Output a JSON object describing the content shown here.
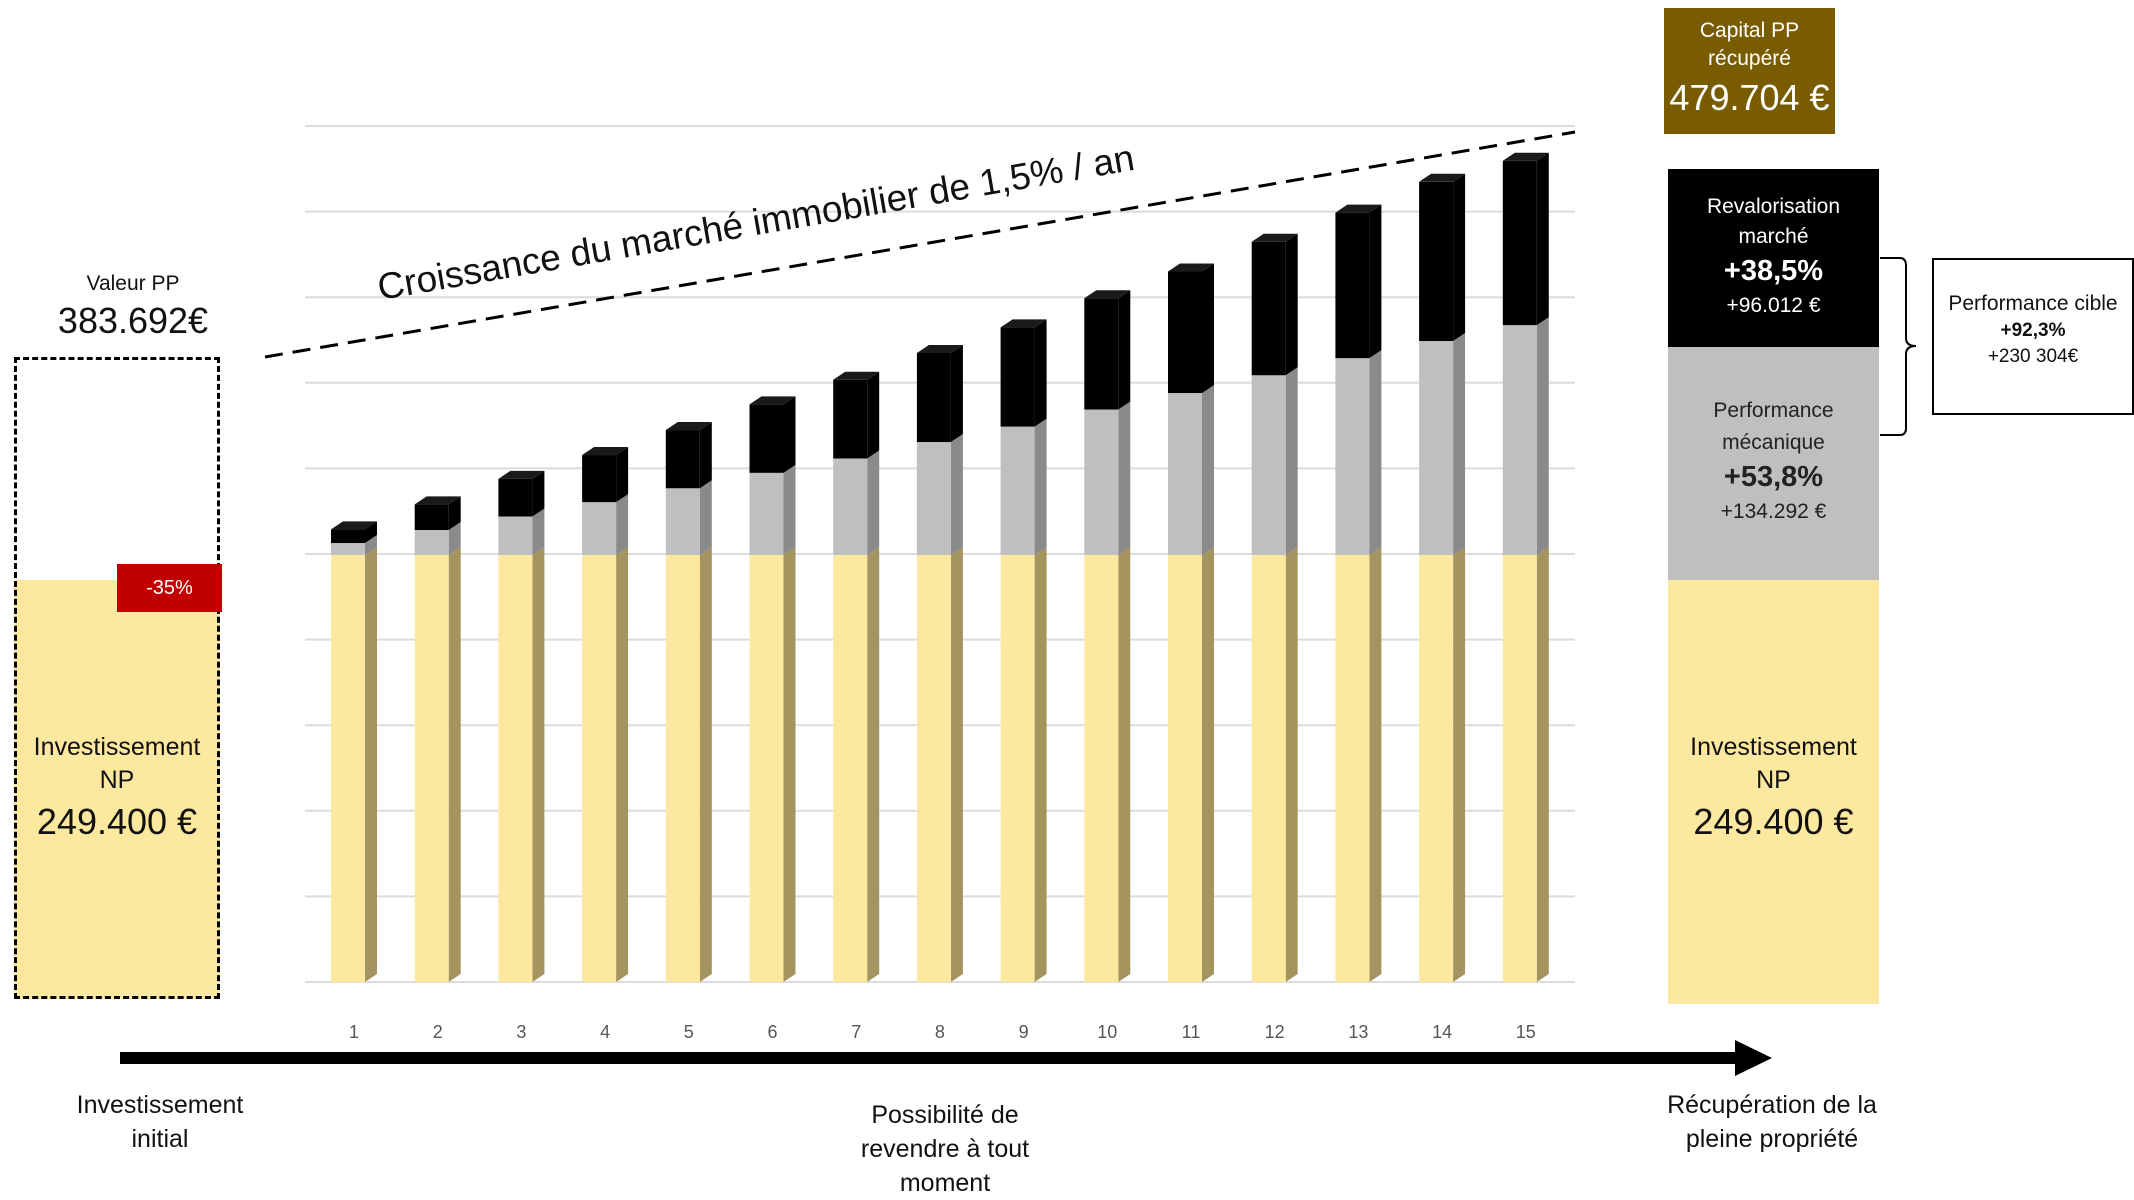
{
  "chart_data": {
    "type": "bar",
    "stacked": true,
    "categories": [
      "1",
      "2",
      "3",
      "4",
      "5",
      "6",
      "7",
      "8",
      "9",
      "10",
      "11",
      "12",
      "13",
      "14",
      "15"
    ],
    "series": [
      {
        "color": "#fde8a0",
        "values": [
          249400,
          249400,
          249400,
          249400,
          249400,
          249400,
          249400,
          249400,
          249400,
          249400,
          249400,
          249400,
          249400,
          249400,
          249400
        ]
      },
      {
        "color": "#bfbfbf",
        "values": [
          7000,
          14600,
          22500,
          30900,
          39000,
          48000,
          56400,
          66000,
          75000,
          85000,
          94600,
          105000,
          115000,
          125000,
          134292
        ]
      },
      {
        "color": "#000000",
        "values": [
          8000,
          15000,
          22000,
          27500,
          34000,
          40000,
          46000,
          52000,
          58000,
          65000,
          71000,
          78000,
          85000,
          93000,
          96012
        ]
      }
    ],
    "ylim": [
      0,
      500000
    ],
    "grid": true,
    "annotations": {
      "trend_label": "Croissance du marché immobilier de 1,5% / an"
    }
  },
  "left": {
    "pp_label": "Valeur PP",
    "pp_value": "383.692€",
    "discount": "-35%",
    "np_label_1": "Investissement",
    "np_label_2": "NP",
    "np_value": "249.400 €"
  },
  "right": {
    "capital_label_1": "Capital PP",
    "capital_label_2": "récupéré",
    "capital_value": "479.704 €",
    "reval_label_1": "Revalorisation",
    "reval_label_2": "marché",
    "reval_pct": "+38,5%",
    "reval_amount": "+96.012 €",
    "meca_label_1": "Performance",
    "meca_label_2": "mécanique",
    "meca_pct": "+53,8%",
    "meca_amount": "+134.292 €",
    "np_label_1": "Investissement",
    "np_label_2": "NP",
    "np_value": "249.400 €",
    "target_label": "Performance cible",
    "target_pct": "+92,3%",
    "target_amount": "+230 304€"
  },
  "timeline": {
    "start_1": "Investissement",
    "start_2": "initial",
    "mid_1": "Possibilité de",
    "mid_2": "revendre à tout",
    "mid_3": "moment",
    "end_1": "Récupération de la",
    "end_2": "pleine propriété"
  }
}
